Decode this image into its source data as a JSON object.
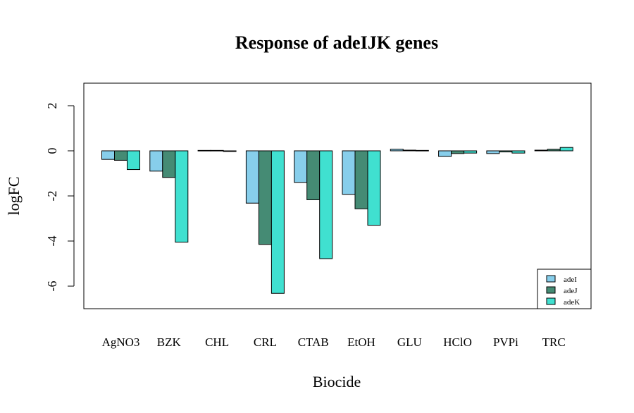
{
  "chart_data": {
    "type": "bar",
    "title": "Response of adeIJK genes",
    "xlabel": "Biocide",
    "ylabel": "logFC",
    "ylim": [
      -7,
      3
    ],
    "yticks": [
      2,
      0,
      -2,
      -4,
      -6
    ],
    "grid": false,
    "legend_position": "bottom-right",
    "categories": [
      "AgNO3",
      "BZK",
      "CHL",
      "CRL",
      "CTAB",
      "EtOH",
      "GLU",
      "HClO",
      "PVPi",
      "TRC"
    ],
    "series": [
      {
        "name": "adeI",
        "color": "#87ceeb",
        "values": [
          -0.38,
          -0.9,
          0.02,
          -2.32,
          -1.4,
          -1.93,
          0.07,
          -0.25,
          -0.12,
          0.03
        ]
      },
      {
        "name": "adeJ",
        "color": "#458b74",
        "values": [
          -0.42,
          -1.18,
          0.02,
          -4.15,
          -2.17,
          -2.57,
          0.03,
          -0.12,
          -0.05,
          0.07
        ]
      },
      {
        "name": "adeK",
        "color": "#40e0d0",
        "values": [
          -0.83,
          -4.05,
          -0.03,
          -6.32,
          -4.78,
          -3.3,
          0.02,
          -0.1,
          -0.1,
          0.15
        ]
      }
    ]
  }
}
